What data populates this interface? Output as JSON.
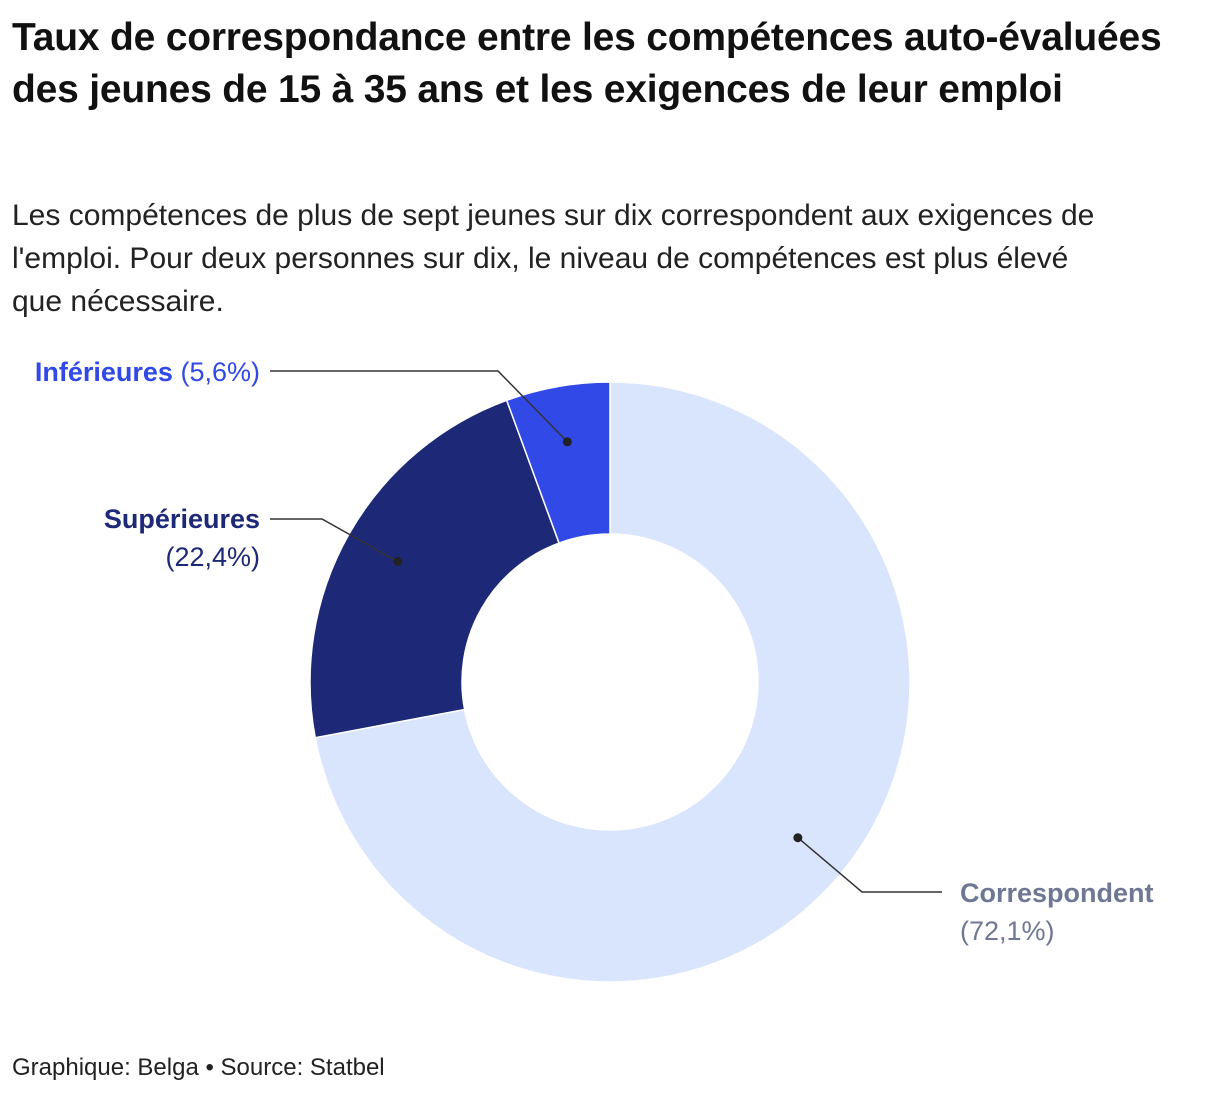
{
  "title": "Taux de correspondance entre les compétences auto-évaluées des jeunes de 15 à 35 ans et les exigences de leur emploi",
  "subtitle": "Les compétences de plus de sept jeunes sur dix correspondent aux exigences de l'emploi. Pour deux personnes sur dix, le niveau de compétences est plus élevé que nécessaire.",
  "footer": {
    "text": "Graphique: Belga • Source: Statbel"
  },
  "chart_data": {
    "type": "pie",
    "donut": true,
    "title": "Taux de correspondance entre les compétences auto-évaluées des jeunes de 15 à 35 ans et les exigences de leur emploi",
    "slices": [
      {
        "name": "Correspondent",
        "value": 72.1,
        "value_label": "(72,1%)",
        "color": "#d9e4fd",
        "label_color": "#6e7794"
      },
      {
        "name": "Supérieures",
        "value": 22.4,
        "value_label": "(22,4%)",
        "color": "#1d2876",
        "label_color": "#1d2876"
      },
      {
        "name": "Inférieures",
        "value": 5.6,
        "value_label": "(5,6%)",
        "color": "#3149e6",
        "label_color": "#3149e6"
      }
    ],
    "legend": "direct labels with leader lines"
  }
}
